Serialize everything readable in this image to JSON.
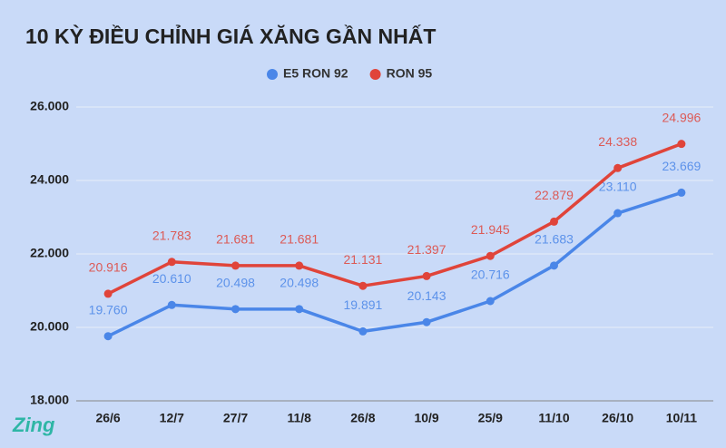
{
  "chart_data": {
    "type": "line",
    "title": "10 KỲ ĐIỀU CHỈNH GIÁ XĂNG GẦN NHẤT",
    "logo": "Zing",
    "categories": [
      "26/6",
      "12/7",
      "27/7",
      "11/8",
      "26/8",
      "10/9",
      "25/9",
      "11/10",
      "26/10",
      "10/11"
    ],
    "series": [
      {
        "name": "E5 RON 92",
        "color": "#4a86e8",
        "values": [
          19760,
          20610,
          20498,
          20498,
          19891,
          20143,
          20716,
          21683,
          23110,
          23669
        ],
        "value_labels": [
          "19.760",
          "20.610",
          "20.498",
          "20.498",
          "19.891",
          "20.143",
          "20.716",
          "21.683",
          "23.110",
          "23.669"
        ]
      },
      {
        "name": "RON 95",
        "color": "#e0443a",
        "values": [
          20916,
          21783,
          21681,
          21681,
          21131,
          21397,
          21945,
          22879,
          24338,
          24996
        ],
        "value_labels": [
          "20.916",
          "21.783",
          "21.681",
          "21.681",
          "21.131",
          "21.397",
          "21.945",
          "22.879",
          "24.338",
          "24.996"
        ]
      }
    ],
    "ylim": [
      18000,
      26000
    ],
    "yticks": [
      {
        "value": 18000,
        "label": "18.000"
      },
      {
        "value": 20000,
        "label": "20.000"
      },
      {
        "value": 22000,
        "label": "22.000"
      },
      {
        "value": 24000,
        "label": "24.000"
      },
      {
        "value": 26000,
        "label": "26.000"
      }
    ],
    "grid": true,
    "legend": "top"
  }
}
